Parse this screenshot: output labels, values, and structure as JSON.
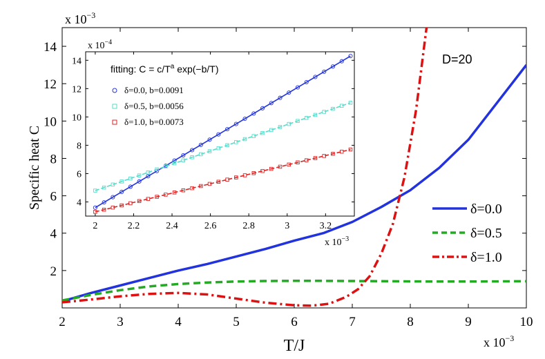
{
  "chart_data": [
    {
      "type": "line",
      "title": "",
      "xlabel": "T/J",
      "ylabel": "Specific heat C",
      "x_scale_label": "x 10",
      "x_scale_exp": "−3",
      "y_scale_label": "x 10",
      "y_scale_exp": "−3",
      "xlim": [
        2,
        10
      ],
      "ylim": [
        0,
        15
      ],
      "xticks": [
        2,
        3,
        4,
        5,
        6,
        7,
        8,
        9,
        10
      ],
      "yticks": [
        2,
        4,
        6,
        8,
        10,
        12,
        14
      ],
      "annotation": "D=20",
      "legend_position": "right",
      "series": [
        {
          "name": "δ=0.0",
          "color": "#2233dd",
          "style": "solid",
          "x": [
            2.0,
            2.5,
            3.0,
            3.5,
            4.0,
            4.5,
            5.0,
            5.5,
            6.0,
            6.5,
            7.0,
            7.5,
            8.0,
            8.5,
            9.0,
            9.5,
            10.0
          ],
          "y": [
            0.35,
            0.8,
            1.2,
            1.6,
            2.0,
            2.35,
            2.75,
            3.15,
            3.6,
            4.0,
            4.6,
            5.4,
            6.3,
            7.5,
            9.0,
            11.0,
            13.0
          ]
        },
        {
          "name": "δ=0.5",
          "color": "#22aa22",
          "style": "dashed",
          "x": [
            2.0,
            2.5,
            3.0,
            3.5,
            4.0,
            4.5,
            5.0,
            5.5,
            6.0,
            6.5,
            7.0,
            7.5,
            8.0,
            8.5,
            9.0,
            9.5,
            10.0
          ],
          "y": [
            0.4,
            0.7,
            0.95,
            1.15,
            1.28,
            1.36,
            1.41,
            1.44,
            1.45,
            1.45,
            1.44,
            1.43,
            1.42,
            1.41,
            1.41,
            1.42,
            1.43
          ]
        },
        {
          "name": "δ=1.0",
          "color": "#dd1111",
          "style": "dashdot",
          "x": [
            2.0,
            2.5,
            3.0,
            3.5,
            4.0,
            4.5,
            5.0,
            5.5,
            6.0,
            6.3,
            6.6,
            6.9,
            7.1,
            7.3,
            7.5,
            7.7,
            7.9,
            8.1,
            8.28
          ],
          "y": [
            0.3,
            0.45,
            0.62,
            0.75,
            0.8,
            0.72,
            0.5,
            0.28,
            0.14,
            0.12,
            0.22,
            0.6,
            1.0,
            1.7,
            2.9,
            4.5,
            7.0,
            10.6,
            15.0
          ]
        }
      ]
    },
    {
      "type": "scatter",
      "title": "fitting: C = c/T",
      "title_sup": "a",
      "title_tail": " exp(−b/T)",
      "x_scale_label": "x 10",
      "x_scale_exp": "−3",
      "y_scale_label": "x 10",
      "y_scale_exp": "−4",
      "xlim": [
        1.95,
        3.35
      ],
      "ylim": [
        3.0,
        14.6
      ],
      "xticks": [
        2,
        2.2,
        2.4,
        2.6,
        2.8,
        3,
        3.2
      ],
      "yticks": [
        4,
        6,
        8,
        10,
        12,
        14
      ],
      "series": [
        {
          "name": "δ=0.0, b=0.0091",
          "color": "#2233dd",
          "marker": "circle",
          "x_start": 2.0,
          "x_end": 3.33,
          "y_start": 3.6,
          "y_end": 14.3,
          "n_points": 30
        },
        {
          "name": "δ=0.5, b=0.0056",
          "color": "#55ddcc",
          "marker": "square",
          "x_start": 2.0,
          "x_end": 3.33,
          "y_start": 4.8,
          "y_end": 11.0,
          "n_points": 30
        },
        {
          "name": "δ=1.0, b=0.0073",
          "color": "#dd2222",
          "marker": "square",
          "x_start": 2.0,
          "x_end": 3.33,
          "y_start": 3.3,
          "y_end": 7.7,
          "n_points": 30
        }
      ]
    }
  ]
}
